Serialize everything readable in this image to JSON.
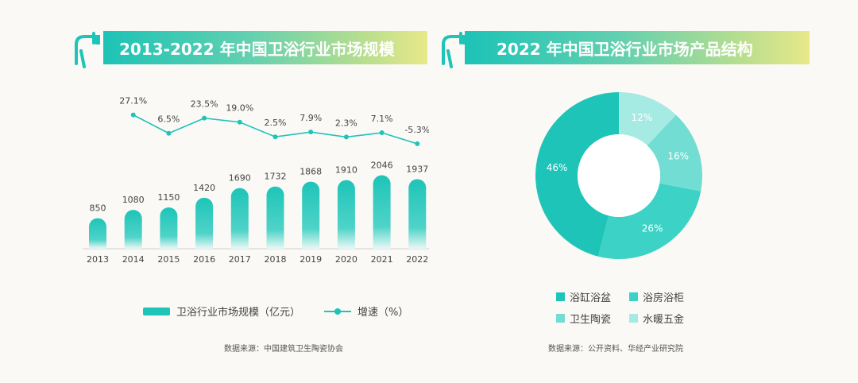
{
  "left": {
    "title": "2013-2022 年中国卫浴行业市场规模",
    "source": "数据来源：中国建筑卫生陶瓷协会",
    "legend": {
      "bar_label": "卫浴行业市场规模（亿元）",
      "line_label": "增速（%）"
    }
  },
  "right": {
    "title": "2022 年中国卫浴行业市场产品结构",
    "source": "数据来源：公开资料、华经产业研究院"
  },
  "colors": {
    "teal": "#1ec4b8",
    "teal_light": "#a6ebe3",
    "teal_mid": "#3cd2c6",
    "teal_pale": "#72ddd3"
  },
  "chart_data": [
    {
      "type": "bar",
      "categories": [
        "2013",
        "2014",
        "2015",
        "2016",
        "2017",
        "2018",
        "2019",
        "2020",
        "2021",
        "2022"
      ],
      "series": [
        {
          "name": "卫浴行业市场规模（亿元）",
          "values": [
            850,
            1080,
            1150,
            1420,
            1690,
            1732,
            1868,
            1910,
            2046,
            1937
          ],
          "labels": [
            "850",
            "1080",
            "1150",
            "1420",
            "1690",
            "1732",
            "1868",
            "1910",
            "2046",
            "1937"
          ]
        },
        {
          "name": "增速（%）",
          "type": "line",
          "values": [
            null,
            27.1,
            6.5,
            23.5,
            19.0,
            2.5,
            7.9,
            2.3,
            7.1,
            -5.3
          ],
          "labels": [
            "",
            "27.1%",
            "6.5%",
            "23.5%",
            "19.0%",
            "2.5%",
            "7.9%",
            "2.3%",
            "7.1%",
            "-5.3%"
          ]
        }
      ]
    },
    {
      "type": "pie",
      "donut": true,
      "slices": [
        {
          "label": "浴缸浴盆",
          "value": 46,
          "text": "46%",
          "color": "#1ec4b8"
        },
        {
          "label": "浴房浴柜",
          "value": 26,
          "text": "26%",
          "color": "#3cd2c6"
        },
        {
          "label": "卫生陶瓷",
          "value": 16,
          "text": "16%",
          "color": "#72ddd3"
        },
        {
          "label": "水暖五金",
          "value": 12,
          "text": "12%",
          "color": "#a6ebe3"
        }
      ]
    }
  ]
}
